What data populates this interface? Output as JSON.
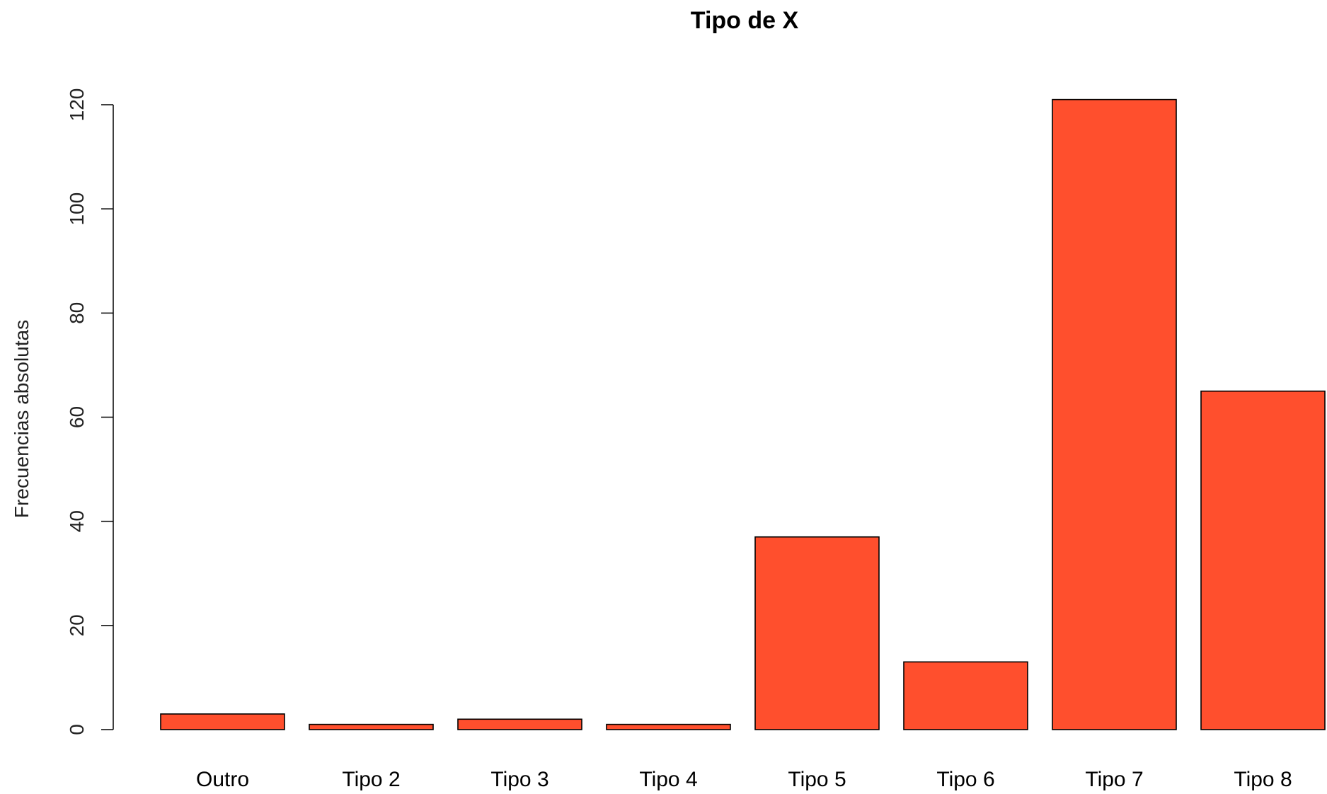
{
  "chart_data": {
    "type": "bar",
    "title": "Tipo de X",
    "xlabel": "",
    "ylabel": "Frecuencias absolutas",
    "categories": [
      "Outro",
      "Tipo 2",
      "Tipo 3",
      "Tipo 4",
      "Tipo 5",
      "Tipo 6",
      "Tipo 7",
      "Tipo 8"
    ],
    "values": [
      3,
      1,
      2,
      1,
      37,
      13,
      121,
      65
    ],
    "ylim": [
      0,
      120
    ],
    "yticks": [
      0,
      20,
      40,
      60,
      80,
      100,
      120
    ],
    "bar_color": "#FF4F2D",
    "grid": false,
    "legend": "none"
  }
}
